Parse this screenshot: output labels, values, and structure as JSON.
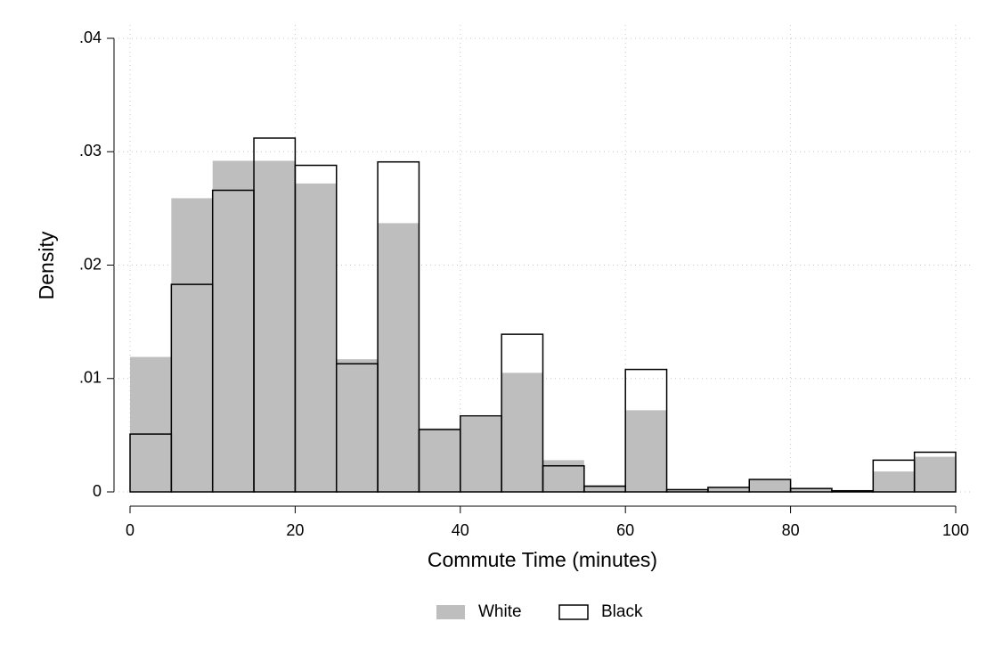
{
  "chart_data": {
    "type": "histogram",
    "xlabel": "Commute Time (minutes)",
    "ylabel": "Density",
    "bins": [
      0,
      5,
      10,
      15,
      20,
      25,
      30,
      35,
      40,
      45,
      50,
      55,
      60,
      65,
      70,
      75,
      80,
      85,
      90,
      95,
      100
    ],
    "series": [
      {
        "name": "White",
        "color": "#bebebe",
        "style": "filled",
        "values": [
          0.0119,
          0.0259,
          0.0292,
          0.0292,
          0.0272,
          0.0117,
          0.0237,
          0.0056,
          0.0066,
          0.0105,
          0.0028,
          0.0006,
          0.0072,
          0.0002,
          0.0004,
          0.0011,
          0.0003,
          0.0001,
          0.0018,
          0.0031
        ]
      },
      {
        "name": "Black",
        "color": "#000000",
        "style": "outline",
        "values": [
          0.0051,
          0.0183,
          0.0266,
          0.0312,
          0.0288,
          0.0113,
          0.0291,
          0.0055,
          0.0067,
          0.0139,
          0.0023,
          0.0005,
          0.0108,
          0.0002,
          0.0004,
          0.0011,
          0.0003,
          0.0001,
          0.0028,
          0.0035
        ]
      }
    ],
    "xlim": [
      0,
      100
    ],
    "xticks": [
      0,
      20,
      40,
      60,
      80,
      100
    ],
    "ylim": [
      0,
      0.04
    ],
    "yticks": [
      0,
      {
        "value": 0.01,
        "label": ".01"
      },
      {
        "value": 0.02,
        "label": ".02"
      },
      {
        "value": 0.03,
        "label": ".03"
      },
      {
        "value": 0.04,
        "label": ".04"
      }
    ],
    "grid": true,
    "legend": "bottom"
  }
}
